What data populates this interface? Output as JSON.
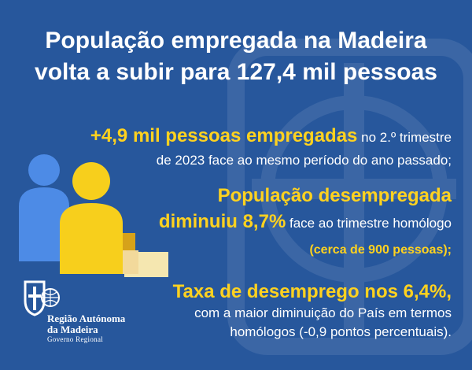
{
  "colors": {
    "background": "#27579c",
    "highlight": "#ffd21f",
    "text": "#ffffff",
    "icon_blue": "#4d8be6",
    "icon_yellow": "#f7cf1c"
  },
  "title": {
    "line1": "População empregada na Madeira",
    "line2": "volta a subir para 127,4 mil pessoas"
  },
  "stat1": {
    "highlight": "+4,9 mil pessoas empregadas",
    "text1": " no 2.º trimestre",
    "text2": "de 2023 face ao mesmo período do ano passado;"
  },
  "stat2": {
    "highlight1": "População desempregada",
    "highlight2": "diminuiu 8,7%",
    "text": " face ao trimestre homólogo",
    "highlight3": "(cerca de 900 pessoas);"
  },
  "stat3": {
    "highlight": "Taxa de desemprego nos 6,4%,",
    "text1": "com a maior diminuição do País em termos",
    "text2": "homólogos (-0,9 pontos percentuais)."
  },
  "icons": {
    "people": "people-bar-chart-icon",
    "logo": "madeira-coat-of-arms-icon",
    "background": "watermark-icon"
  },
  "logo": {
    "line1": "Região Autónoma",
    "line2": "da Madeira",
    "line3": "Governo Regional"
  }
}
